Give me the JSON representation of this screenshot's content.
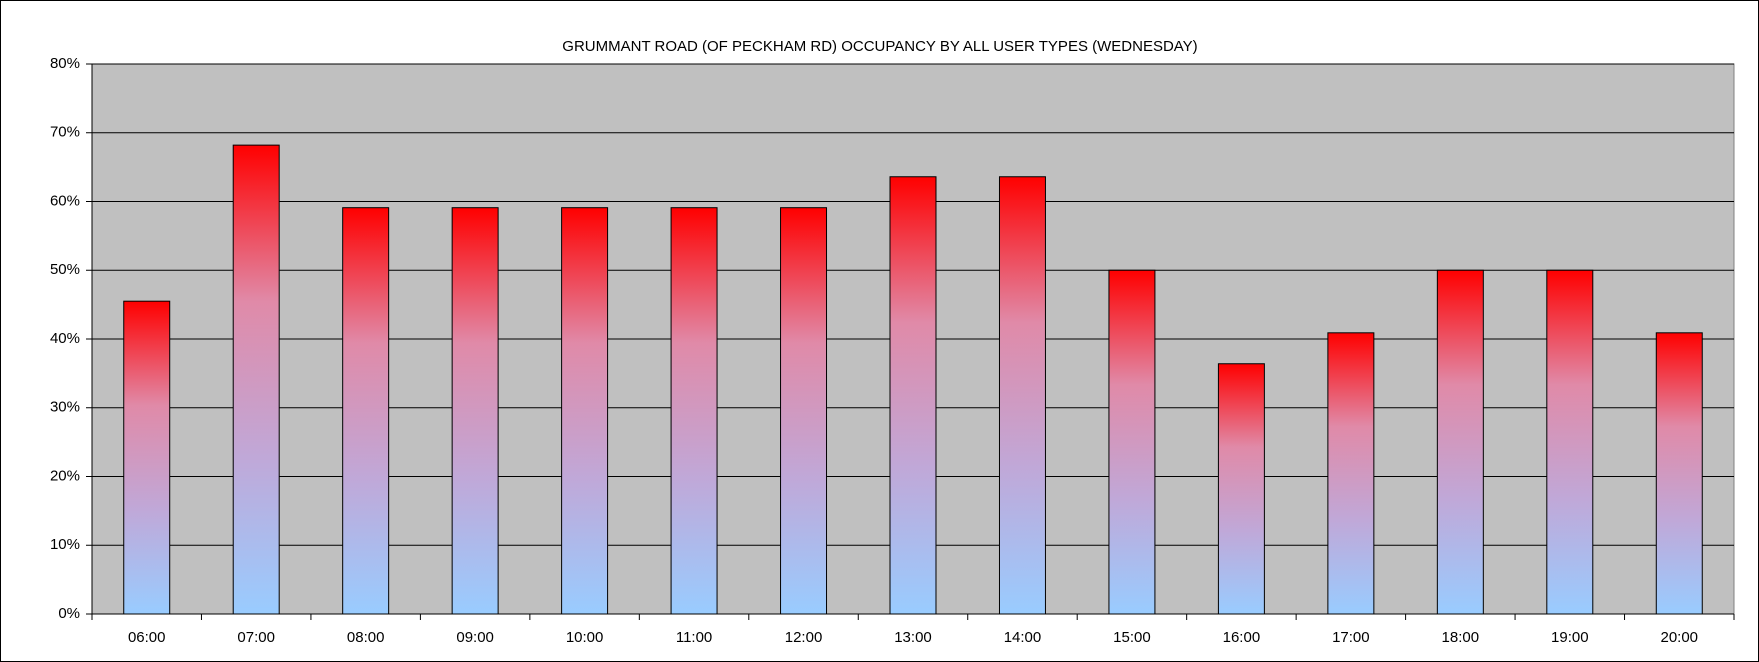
{
  "chart_data": {
    "type": "bar",
    "title": "GRUMMANT ROAD (OF PECKHAM RD) OCCUPANCY BY ALL USER TYPES (WEDNESDAY)",
    "categories": [
      "06:00",
      "07:00",
      "08:00",
      "09:00",
      "10:00",
      "11:00",
      "12:00",
      "13:00",
      "14:00",
      "15:00",
      "16:00",
      "17:00",
      "18:00",
      "19:00",
      "20:00"
    ],
    "values": [
      45.5,
      68.2,
      59.1,
      59.1,
      59.1,
      59.1,
      59.1,
      63.6,
      63.6,
      50,
      36.4,
      40.9,
      50,
      50,
      40.9
    ],
    "gradient": [
      "#ff0000",
      "#e08aa8",
      "#c0a8d8",
      "#99ccff"
    ],
    "plot_background": "#c0c0c0",
    "ylim": [
      0,
      80
    ],
    "yticks": [
      {
        "value": 0,
        "label": "0%"
      },
      {
        "value": 10,
        "label": "10%"
      },
      {
        "value": 20,
        "label": "20%"
      },
      {
        "value": 30,
        "label": "30%"
      },
      {
        "value": 40,
        "label": "40%"
      },
      {
        "value": 50,
        "label": "50%"
      },
      {
        "value": 60,
        "label": "60%"
      },
      {
        "value": 70,
        "label": "70%"
      },
      {
        "value": 80,
        "label": "80%"
      }
    ],
    "grid": true
  }
}
